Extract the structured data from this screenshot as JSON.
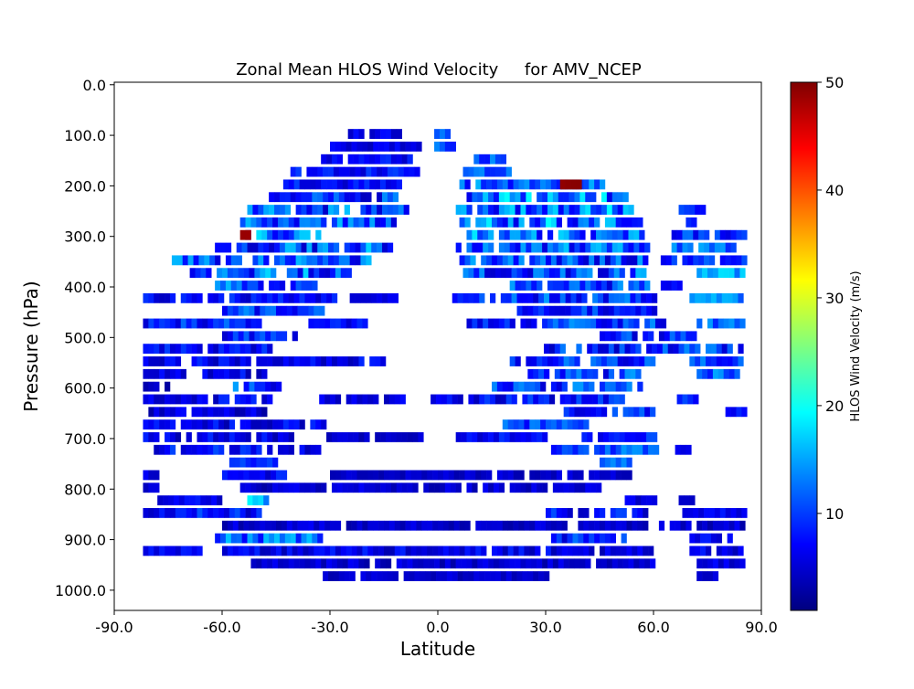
{
  "chart_data": {
    "type": "heatmap",
    "title": "Zonal Mean HLOS Wind Velocity     for AMV_NCEP",
    "xlabel": "Latitude",
    "ylabel": "Pressure (hPa)",
    "xlim": [
      -90,
      90
    ],
    "ylim": [
      1040,
      -5
    ],
    "y_inverted": true,
    "x_ticks": [
      -90,
      -60,
      -30,
      0,
      30,
      60,
      90
    ],
    "x_tick_labels": [
      "-90.0",
      "-60.0",
      "-30.0",
      "0.0",
      "30.0",
      "60.0",
      "90.0"
    ],
    "y_ticks": [
      0,
      100,
      200,
      300,
      400,
      500,
      600,
      700,
      800,
      900,
      1000
    ],
    "y_tick_labels": [
      "0.0",
      "100.0",
      "200.0",
      "300.0",
      "400.0",
      "500.0",
      "600.0",
      "700.0",
      "800.0",
      "900.0",
      "1000.0"
    ],
    "grid": false,
    "colorbar": {
      "label": "HLOS Wind Velocity (m/s)",
      "colormap": "jet",
      "vmin": 1,
      "vmax": 50,
      "ticks": [
        10,
        20,
        30,
        40,
        50
      ],
      "tick_labels": [
        "10",
        "20",
        "30",
        "40",
        "50"
      ],
      "colors": [
        "#00007f",
        "#0000ff",
        "#007fff",
        "#00ffff",
        "#7fff7f",
        "#ffff00",
        "#ff7f00",
        "#ff0000",
        "#7f0000"
      ]
    },
    "cell_size": {
      "lat_deg": 1.5,
      "pressure_hpa": 25
    },
    "rows": [
      {
        "p": 100,
        "lat": [
          -25,
          -10
        ],
        "base": 5,
        "var": 4
      },
      {
        "p": 100,
        "lat": [
          -1,
          3
        ],
        "base": 12,
        "var": 6
      },
      {
        "p": 125,
        "lat": [
          -30,
          -5
        ],
        "base": 5,
        "var": 4
      },
      {
        "p": 125,
        "lat": [
          -1,
          4
        ],
        "base": 10,
        "var": 6
      },
      {
        "p": 150,
        "lat": [
          -34,
          -8
        ],
        "base": 6,
        "var": 5
      },
      {
        "p": 150,
        "lat": [
          10,
          19
        ],
        "base": 10,
        "var": 7
      },
      {
        "p": 175,
        "lat": [
          -41,
          -6
        ],
        "base": 6,
        "var": 6
      },
      {
        "p": 175,
        "lat": [
          7,
          22
        ],
        "base": 9,
        "var": 8
      },
      {
        "p": 200,
        "lat": [
          -43,
          -10
        ],
        "base": 6,
        "var": 6
      },
      {
        "p": 200,
        "lat": [
          6,
          46
        ],
        "base": 9,
        "var": 10
      },
      {
        "p": 200,
        "lat": [
          34,
          40
        ],
        "base": 49,
        "var": 1
      },
      {
        "p": 225,
        "lat": [
          -47,
          -10
        ],
        "base": 7,
        "var": 10
      },
      {
        "p": 225,
        "lat": [
          8,
          52
        ],
        "base": 10,
        "var": 14
      },
      {
        "p": 250,
        "lat": [
          -53,
          -9
        ],
        "base": 8,
        "var": 12
      },
      {
        "p": 250,
        "lat": [
          5,
          54
        ],
        "base": 10,
        "var": 14
      },
      {
        "p": 250,
        "lat": [
          67,
          74
        ],
        "base": 8,
        "var": 10
      },
      {
        "p": 275,
        "lat": [
          -55,
          -11
        ],
        "base": 8,
        "var": 12
      },
      {
        "p": 275,
        "lat": [
          6,
          56
        ],
        "base": 10,
        "var": 14
      },
      {
        "p": 275,
        "lat": [
          69,
          72
        ],
        "base": 7,
        "var": 3
      },
      {
        "p": 300,
        "lat": [
          -55,
          -33
        ],
        "base": 9,
        "var": 14
      },
      {
        "p": 300,
        "lat": [
          -55,
          -52
        ],
        "base": 49,
        "var": 1
      },
      {
        "p": 300,
        "lat": [
          5,
          57
        ],
        "base": 10,
        "var": 12
      },
      {
        "p": 300,
        "lat": [
          65,
          85
        ],
        "base": 8,
        "var": 8
      },
      {
        "p": 325,
        "lat": [
          -62,
          -13
        ],
        "base": 8,
        "var": 14
      },
      {
        "p": 325,
        "lat": [
          5,
          58
        ],
        "base": 9,
        "var": 12
      },
      {
        "p": 325,
        "lat": [
          65,
          82
        ],
        "base": 9,
        "var": 10
      },
      {
        "p": 350,
        "lat": [
          -74,
          -19
        ],
        "base": 8,
        "var": 12
      },
      {
        "p": 350,
        "lat": [
          6,
          60
        ],
        "base": 8,
        "var": 12
      },
      {
        "p": 350,
        "lat": [
          62,
          85
        ],
        "base": 9,
        "var": 10
      },
      {
        "p": 375,
        "lat": [
          -69,
          -25
        ],
        "base": 9,
        "var": 14
      },
      {
        "p": 375,
        "lat": [
          7,
          57
        ],
        "base": 8,
        "var": 12
      },
      {
        "p": 375,
        "lat": [
          72,
          85
        ],
        "base": 14,
        "var": 8
      },
      {
        "p": 400,
        "lat": [
          -62,
          -34
        ],
        "base": 9,
        "var": 10
      },
      {
        "p": 400,
        "lat": [
          20,
          58
        ],
        "base": 8,
        "var": 10
      },
      {
        "p": 400,
        "lat": [
          62,
          68
        ],
        "base": 6,
        "var": 4
      },
      {
        "p": 425,
        "lat": [
          -82,
          -28
        ],
        "base": 6,
        "var": 6
      },
      {
        "p": 425,
        "lat": [
          -26,
          -12
        ],
        "base": 5,
        "var": 3
      },
      {
        "p": 425,
        "lat": [
          4,
          60
        ],
        "base": 8,
        "var": 10
      },
      {
        "p": 425,
        "lat": [
          70,
          85
        ],
        "base": 12,
        "var": 8
      },
      {
        "p": 450,
        "lat": [
          -60,
          -32
        ],
        "base": 8,
        "var": 10
      },
      {
        "p": 450,
        "lat": [
          22,
          60
        ],
        "base": 7,
        "var": 8
      },
      {
        "p": 475,
        "lat": [
          -82,
          -50
        ],
        "base": 7,
        "var": 8
      },
      {
        "p": 475,
        "lat": [
          -36,
          -20
        ],
        "base": 6,
        "var": 5
      },
      {
        "p": 475,
        "lat": [
          8,
          63
        ],
        "base": 8,
        "var": 10
      },
      {
        "p": 475,
        "lat": [
          72,
          85
        ],
        "base": 10,
        "var": 8
      },
      {
        "p": 500,
        "lat": [
          -60,
          -40
        ],
        "base": 7,
        "var": 8
      },
      {
        "p": 500,
        "lat": [
          45,
          72
        ],
        "base": 7,
        "var": 8
      },
      {
        "p": 525,
        "lat": [
          -82,
          -47
        ],
        "base": 6,
        "var": 6
      },
      {
        "p": 525,
        "lat": [
          28,
          85
        ],
        "base": 7,
        "var": 10
      },
      {
        "p": 550,
        "lat": [
          -82,
          -15
        ],
        "base": 5,
        "var": 6
      },
      {
        "p": 550,
        "lat": [
          20,
          60
        ],
        "base": 8,
        "var": 10
      },
      {
        "p": 550,
        "lat": [
          70,
          84
        ],
        "base": 9,
        "var": 8
      },
      {
        "p": 575,
        "lat": [
          -82,
          -48
        ],
        "base": 5,
        "var": 6
      },
      {
        "p": 575,
        "lat": [
          25,
          56
        ],
        "base": 8,
        "var": 10
      },
      {
        "p": 575,
        "lat": [
          72,
          84
        ],
        "base": 10,
        "var": 8
      },
      {
        "p": 600,
        "lat": [
          -82,
          -75
        ],
        "base": 3,
        "var": 3
      },
      {
        "p": 600,
        "lat": [
          -57,
          -44
        ],
        "base": 8,
        "var": 10
      },
      {
        "p": 600,
        "lat": [
          15,
          56
        ],
        "base": 8,
        "var": 10
      },
      {
        "p": 625,
        "lat": [
          -82,
          -47
        ],
        "base": 5,
        "var": 6
      },
      {
        "p": 625,
        "lat": [
          -33,
          -9
        ],
        "base": 5,
        "var": 4
      },
      {
        "p": 625,
        "lat": [
          -2,
          52
        ],
        "base": 6,
        "var": 8
      },
      {
        "p": 625,
        "lat": [
          65,
          72
        ],
        "base": 8,
        "var": 6
      },
      {
        "p": 650,
        "lat": [
          -82,
          -48
        ],
        "base": 4,
        "var": 5
      },
      {
        "p": 650,
        "lat": [
          35,
          62
        ],
        "base": 7,
        "var": 8
      },
      {
        "p": 650,
        "lat": [
          80,
          85
        ],
        "base": 7,
        "var": 3
      },
      {
        "p": 675,
        "lat": [
          -82,
          -32
        ],
        "base": 5,
        "var": 6
      },
      {
        "p": 675,
        "lat": [
          18,
          42
        ],
        "base": 8,
        "var": 8
      },
      {
        "p": 700,
        "lat": [
          -82,
          -40
        ],
        "base": 5,
        "var": 6
      },
      {
        "p": 700,
        "lat": [
          -31,
          -5
        ],
        "base": 4,
        "var": 3
      },
      {
        "p": 700,
        "lat": [
          5,
          30
        ],
        "base": 6,
        "var": 5
      },
      {
        "p": 700,
        "lat": [
          40,
          60
        ],
        "base": 7,
        "var": 6
      },
      {
        "p": 725,
        "lat": [
          -82,
          -33
        ],
        "base": 6,
        "var": 8
      },
      {
        "p": 725,
        "lat": [
          30,
          61
        ],
        "base": 9,
        "var": 8
      },
      {
        "p": 725,
        "lat": [
          66,
          71
        ],
        "base": 6,
        "var": 4
      },
      {
        "p": 750,
        "lat": [
          -58,
          -45
        ],
        "base": 7,
        "var": 6
      },
      {
        "p": 750,
        "lat": [
          45,
          54
        ],
        "base": 10,
        "var": 6
      },
      {
        "p": 775,
        "lat": [
          -82,
          -78
        ],
        "base": 5,
        "var": 3
      },
      {
        "p": 775,
        "lat": [
          -60,
          -42
        ],
        "base": 6,
        "var": 6
      },
      {
        "p": 775,
        "lat": [
          -30,
          54
        ],
        "base": 4,
        "var": 3
      },
      {
        "p": 800,
        "lat": [
          -82,
          -78
        ],
        "base": 5,
        "var": 3
      },
      {
        "p": 800,
        "lat": [
          -55,
          45
        ],
        "base": 4,
        "var": 4
      },
      {
        "p": 825,
        "lat": [
          -78,
          -60
        ],
        "base": 5,
        "var": 5
      },
      {
        "p": 825,
        "lat": [
          -53,
          -48
        ],
        "base": 15,
        "var": 8
      },
      {
        "p": 825,
        "lat": [
          52,
          61
        ],
        "base": 5,
        "var": 4
      },
      {
        "p": 825,
        "lat": [
          67,
          71
        ],
        "base": 4,
        "var": 2
      },
      {
        "p": 850,
        "lat": [
          -82,
          -50
        ],
        "base": 6,
        "var": 8
      },
      {
        "p": 850,
        "lat": [
          30,
          58
        ],
        "base": 6,
        "var": 8
      },
      {
        "p": 850,
        "lat": [
          68,
          85
        ],
        "base": 6,
        "var": 6
      },
      {
        "p": 875,
        "lat": [
          -60,
          85
        ],
        "base": 4,
        "var": 4
      },
      {
        "p": 900,
        "lat": [
          -62,
          -33
        ],
        "base": 9,
        "var": 12
      },
      {
        "p": 900,
        "lat": [
          30,
          52
        ],
        "base": 7,
        "var": 8
      },
      {
        "p": 900,
        "lat": [
          70,
          82
        ],
        "base": 6,
        "var": 4
      },
      {
        "p": 925,
        "lat": [
          -82,
          -66
        ],
        "base": 5,
        "var": 5
      },
      {
        "p": 925,
        "lat": [
          -60,
          60
        ],
        "base": 5,
        "var": 6
      },
      {
        "p": 925,
        "lat": [
          70,
          85
        ],
        "base": 5,
        "var": 5
      },
      {
        "p": 950,
        "lat": [
          -52,
          60
        ],
        "base": 4,
        "var": 4
      },
      {
        "p": 950,
        "lat": [
          72,
          85
        ],
        "base": 5,
        "var": 4
      },
      {
        "p": 975,
        "lat": [
          -32,
          30
        ],
        "base": 4,
        "var": 3
      },
      {
        "p": 975,
        "lat": [
          72,
          78
        ],
        "base": 4,
        "var": 3
      }
    ]
  }
}
